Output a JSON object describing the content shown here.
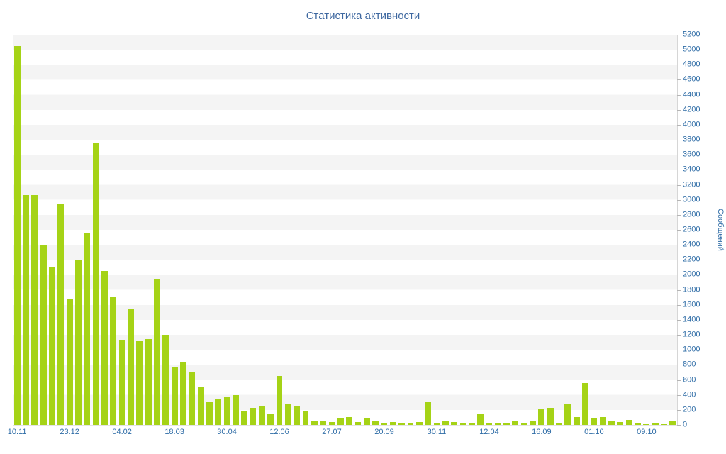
{
  "header": {
    "title": "Статистика активности"
  },
  "colors": {
    "bar": "#a5d316",
    "title_text": "#3e68a0",
    "axis_text": "#2e6ca6",
    "band": "#f4f4f4"
  },
  "chart_data": {
    "type": "bar",
    "title": "Статистика активности",
    "xlabel": "",
    "ylabel": "Сообщений",
    "ylim": [
      0,
      5200
    ],
    "y_tick_step": 200,
    "grid": "alternating horizontal bands",
    "legend": "none",
    "y_axis_position": "right",
    "x_tick_labels": [
      "10.11",
      "23.12",
      "04.02",
      "18.03",
      "30.04",
      "12.06",
      "27.07",
      "20.09",
      "30.11",
      "12.04",
      "16.09",
      "01.10",
      "09.10"
    ],
    "x_tick_every": 6,
    "values": [
      5050,
      3060,
      3060,
      2400,
      2100,
      2950,
      1670,
      2200,
      2550,
      3750,
      2050,
      1700,
      1130,
      1550,
      1120,
      1140,
      1950,
      1200,
      780,
      830,
      700,
      500,
      310,
      350,
      380,
      400,
      190,
      230,
      250,
      150,
      650,
      280,
      250,
      180,
      60,
      50,
      40,
      90,
      100,
      40,
      90,
      60,
      30,
      40,
      20,
      30,
      40,
      300,
      30,
      60,
      40,
      20,
      25,
      150,
      30,
      20,
      30,
      60,
      20,
      50,
      220,
      230,
      30,
      280,
      100,
      560,
      90,
      100,
      60,
      40,
      70,
      20,
      10,
      30,
      10,
      60
    ]
  }
}
